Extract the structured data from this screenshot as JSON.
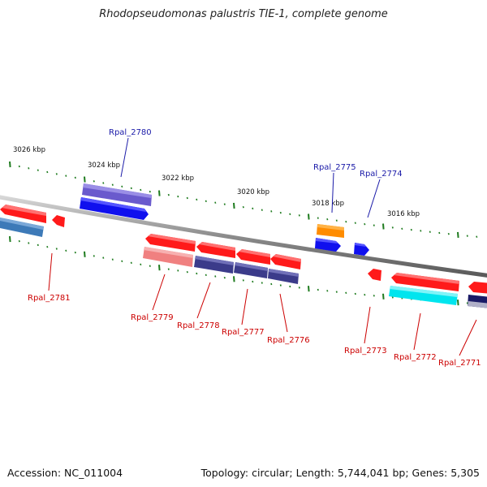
{
  "title": "Rhodopseudomonas palustris TIE-1, complete genome",
  "footer": {
    "accession": "Accession: NC_011004",
    "summary": "Topology: circular; Length: 5,744,041 bp; Genes: 5,305"
  },
  "colors": {
    "backbone": "#8c8c8c",
    "tick": "#1e7b1e",
    "label_red": "#cc0000",
    "label_blue": "#1a1aa8"
  },
  "scale_labels": [
    "3026 kbp",
    "3024 kbp",
    "3022 kbp",
    "3020 kbp",
    "3018 kbp",
    "3016 kbp"
  ],
  "genes": [
    {
      "label": "Rpal_2781",
      "color": "#ff1a1a",
      "label_color": "#cc0000"
    },
    {
      "label": "Rpal_2780",
      "color": "#1010ee",
      "label_color": "#1a1aa8"
    },
    {
      "label": "Rpal_2779",
      "color": "#ff1a1a",
      "label_color": "#cc0000"
    },
    {
      "label": "Rpal_2778",
      "color": "#ff1a1a",
      "label_color": "#cc0000"
    },
    {
      "label": "Rpal_2777",
      "color": "#ff1a1a",
      "label_color": "#cc0000"
    },
    {
      "label": "Rpal_2776",
      "color": "#ff1a1a",
      "label_color": "#cc0000"
    },
    {
      "label": "Rpal_2775",
      "color": "#ff8c00",
      "label_color": "#1a1aa8"
    },
    {
      "label": "Rpal_2774",
      "color": "#1010ee",
      "label_color": "#1a1aa8"
    },
    {
      "label": "Rpal_2773",
      "color": "#ff1a1a",
      "label_color": "#cc0000"
    },
    {
      "label": "Rpal_2772",
      "color": "#ff1a1a",
      "label_color": "#cc0000"
    },
    {
      "label": "Rpal_2771",
      "color": "#ff1a1a",
      "label_color": "#cc0000"
    }
  ]
}
